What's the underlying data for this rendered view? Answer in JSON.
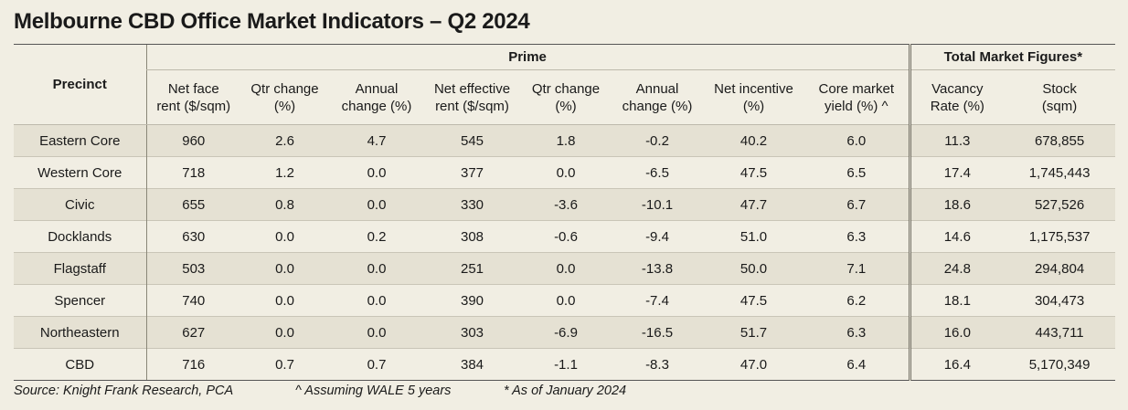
{
  "title": "Melbourne CBD Office Market Indicators – Q2 2024",
  "table": {
    "precinct_header": "Precinct",
    "group_prime": "Prime",
    "group_total": "Total Market Figures*",
    "columns": [
      {
        "line1": "Net face",
        "line2": "rent ($/sqm)"
      },
      {
        "line1": "Qtr change",
        "line2": "(%)"
      },
      {
        "line1": "Annual",
        "line2": "change (%)"
      },
      {
        "line1": "Net effective",
        "line2": "rent ($/sqm)"
      },
      {
        "line1": "Qtr change",
        "line2": "(%)"
      },
      {
        "line1": "Annual",
        "line2": "change (%)"
      },
      {
        "line1": "Net incentive",
        "line2": "(%)"
      },
      {
        "line1": "Core market",
        "line2": "yield (%) ^"
      },
      {
        "line1": "Vacancy",
        "line2": "Rate (%)"
      },
      {
        "line1": "Stock",
        "line2": "(sqm)"
      }
    ],
    "rows": [
      [
        "Eastern Core",
        "960",
        "2.6",
        "4.7",
        "545",
        "1.8",
        "-0.2",
        "40.2",
        "6.0",
        "11.3",
        "678,855"
      ],
      [
        "Western Core",
        "718",
        "1.2",
        "0.0",
        "377",
        "0.0",
        "-6.5",
        "47.5",
        "6.5",
        "17.4",
        "1,745,443"
      ],
      [
        "Civic",
        "655",
        "0.8",
        "0.0",
        "330",
        "-3.6",
        "-10.1",
        "47.7",
        "6.7",
        "18.6",
        "527,526"
      ],
      [
        "Docklands",
        "630",
        "0.0",
        "0.2",
        "308",
        "-0.6",
        "-9.4",
        "51.0",
        "6.3",
        "14.6",
        "1,175,537"
      ],
      [
        "Flagstaff",
        "503",
        "0.0",
        "0.0",
        "251",
        "0.0",
        "-13.8",
        "50.0",
        "7.1",
        "24.8",
        "294,804"
      ],
      [
        "Spencer",
        "740",
        "0.0",
        "0.0",
        "390",
        "0.0",
        "-7.4",
        "47.5",
        "6.2",
        "18.1",
        "304,473"
      ],
      [
        "Northeastern",
        "627",
        "0.0",
        "0.0",
        "303",
        "-6.9",
        "-16.5",
        "51.7",
        "6.3",
        "16.0",
        "443,711"
      ],
      [
        "CBD",
        "716",
        "0.7",
        "0.7",
        "384",
        "-1.1",
        "-8.3",
        "47.0",
        "6.4",
        "16.4",
        "5,170,349"
      ]
    ]
  },
  "footnotes": {
    "source": "Source: Knight Frank Research, PCA",
    "wale": "^ Assuming WALE 5 years",
    "asof": "* As of January 2024"
  }
}
